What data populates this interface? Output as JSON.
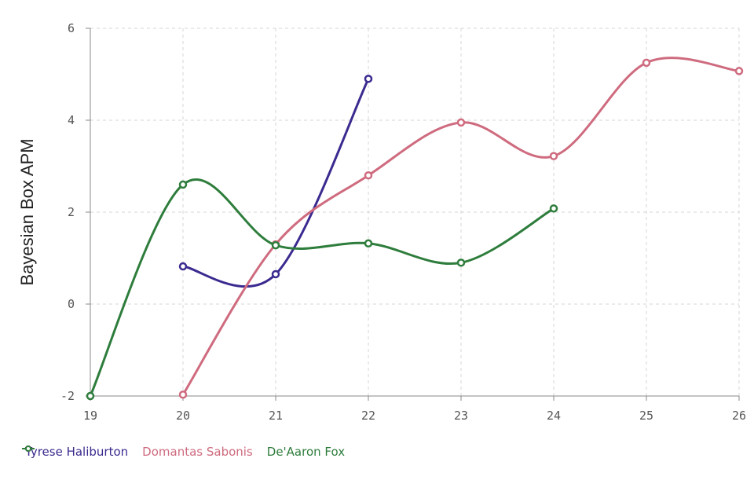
{
  "chart_data": {
    "type": "line",
    "title": "",
    "xlabel": "",
    "ylabel": "Bayesian Box APM",
    "xlim": [
      19,
      26
    ],
    "ylim": [
      -2,
      6
    ],
    "x_ticks": [
      "19",
      "20",
      "21",
      "22",
      "23",
      "24",
      "25",
      "26"
    ],
    "y_ticks": [
      "-2",
      "0",
      "2",
      "4",
      "6"
    ],
    "grid": true,
    "legend_position": "bottom-left",
    "series": [
      {
        "name": "Tyrese Haliburton",
        "color": "#3b2a8f",
        "x": [
          20,
          21,
          22
        ],
        "values": [
          0.82,
          0.65,
          4.9
        ]
      },
      {
        "name": "Domantas Sabonis",
        "color": "#cf6b7f",
        "x": [
          20,
          21,
          22,
          23,
          24,
          25,
          26
        ],
        "values": [
          -1.97,
          1.3,
          2.8,
          3.95,
          3.22,
          5.25,
          5.07
        ]
      },
      {
        "name": "De'Aaron Fox",
        "color": "#2e7d3c",
        "x": [
          19,
          20,
          21,
          22,
          23,
          24
        ],
        "values": [
          -2.0,
          2.6,
          1.28,
          1.32,
          0.9,
          2.08
        ]
      }
    ]
  }
}
